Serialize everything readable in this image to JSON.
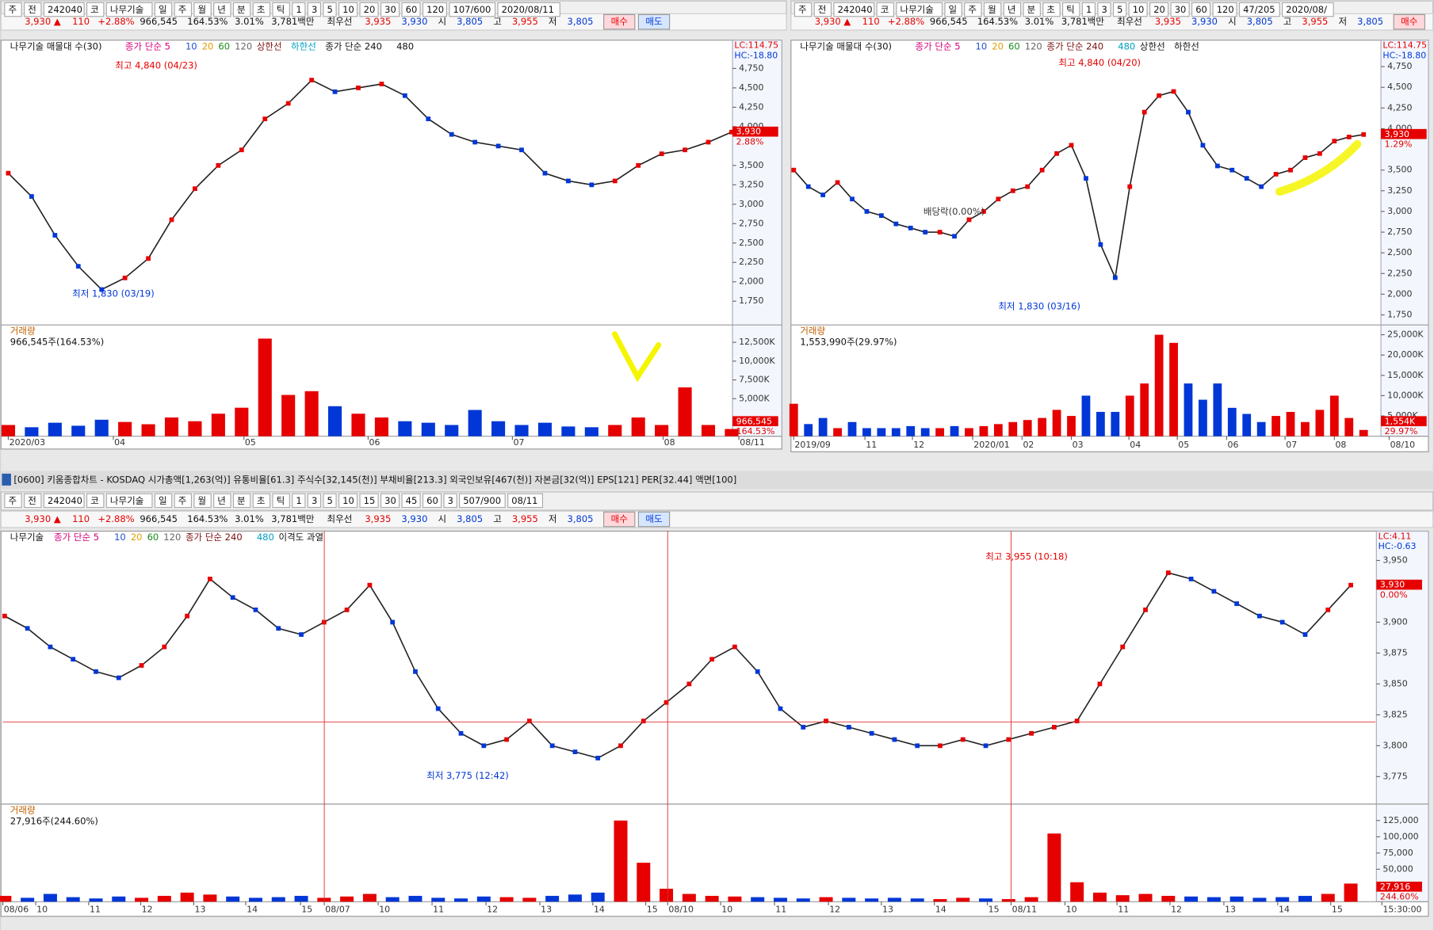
{
  "window_title": "[0600] 키움종합차트 - KOSDAQ 시가총액[1,263(억)] 유통비율[61.3] 주식수[32,145(천)] 부채비율[213.3] 외국인보유[467(천)] 자본금[32(억)] EPS[121] PER[32.44] 액면[100]",
  "panes": [
    {
      "toolbar": [
        "주",
        "전",
        "242040",
        "코",
        "나무기술",
        "일",
        "주",
        "월",
        "년",
        "분",
        "초",
        "틱",
        "1",
        "3",
        "5",
        "10",
        "20",
        "30",
        "60",
        "120",
        "107/600",
        "2020/08/11"
      ],
      "quote": [
        "3,930 ▲",
        "110",
        "+2.88%",
        "966,545",
        "164.53%",
        "3.01%",
        "3,781백만",
        "최우선",
        "3,935",
        "3,930",
        "시",
        "3,805",
        "고",
        "3,955",
        "저",
        "3,805"
      ],
      "buttons": [
        "매수",
        "매도"
      ],
      "legend": [
        "나무기술 매물대 수(30)",
        "종가 단순 5",
        "10",
        "20",
        "60",
        "120",
        "상한선",
        "하한선",
        "종가 단순 240",
        "480"
      ],
      "price": {
        "ylim": [
          1456,
          5115
        ],
        "yticks": [
          {
            "value": 4750,
            "label": "4,750"
          },
          {
            "value": 4500,
            "label": "4,500"
          },
          {
            "value": 4250,
            "label": "4,250"
          },
          {
            "value": 4000,
            "label": "4,000"
          },
          {
            "value": 3500,
            "label": "3,500"
          },
          {
            "value": 3250,
            "label": "3,250"
          },
          {
            "value": 3000,
            "label": "3,000"
          },
          {
            "value": 2750,
            "label": "2,750"
          },
          {
            "value": 2500,
            "label": "2,500"
          },
          {
            "value": 2250,
            "label": "2,250"
          },
          {
            "value": 2000,
            "label": "2,000"
          },
          {
            "value": 1750,
            "label": "1,750"
          }
        ],
        "labels": [
          "LC:114.75",
          "HC:-18.80"
        ],
        "current": {
          "value": 3930,
          "label": "3,930",
          "change": "2.88%"
        },
        "annotations": [
          "최고 4,840 (04/23)",
          "최저 1,830 (03/19)"
        ],
        "close": [
          3400,
          3100,
          2600,
          2200,
          1900,
          2050,
          2300,
          2800,
          3200,
          3500,
          3700,
          4100,
          4300,
          4600,
          4450,
          4500,
          4550,
          4400,
          4100,
          3900,
          3800,
          3750,
          3700,
          3400,
          3300,
          3250,
          3300,
          3500,
          3650,
          3700,
          3800,
          3930
        ]
      },
      "volume": {
        "title": "거래량",
        "summary": "966,545주(164.53%)",
        "ylim": [
          0,
          14700
        ],
        "yticks": [
          {
            "value": 12500,
            "label": "12,500K"
          },
          {
            "value": 10000,
            "label": "10,000K"
          },
          {
            "value": 7500,
            "label": "7,500K"
          },
          {
            "value": 5000,
            "label": "5,000K"
          }
        ],
        "current": "966,545",
        "ratio": "164.53%",
        "values": [
          1500,
          1200,
          1800,
          1400,
          2200,
          1900,
          1600,
          2500,
          2000,
          3000,
          3800,
          13000,
          5500,
          6000,
          4000,
          3000,
          2500,
          2000,
          1800,
          1500,
          3500,
          2000,
          1500,
          1800,
          1300,
          1200,
          1500,
          2500,
          1500,
          6500,
          1500,
          966.545
        ]
      },
      "dates": [
        "2020/03",
        "04",
        "05",
        "06",
        "07",
        "08",
        "08/11"
      ]
    },
    {
      "toolbar": [
        "주",
        "전",
        "242040",
        "코",
        "나무기술",
        "일",
        "주",
        "월",
        "년",
        "분",
        "초",
        "틱",
        "1",
        "3",
        "5",
        "10",
        "20",
        "30",
        "60",
        "120",
        "47/205",
        "2020/08/"
      ],
      "quote": [
        "3,930 ▲",
        "110",
        "+2.88%",
        "966,545",
        "164.53%",
        "3.01%",
        "3,781백만",
        "최우선",
        "3,935",
        "3,930",
        "시",
        "3,805",
        "고",
        "3,955",
        "저",
        "3,805"
      ],
      "buttons": [
        "매수"
      ],
      "legend": [
        "나무기술 매물대 수(30)",
        "종가 단순 5",
        "10",
        "20",
        "60",
        "120",
        "종가 단순 240",
        "480",
        "상한선",
        "하한선"
      ],
      "price": {
        "ylim": [
          1640,
          5070
        ],
        "yticks": [
          {
            "value": 4750,
            "label": "4,750"
          },
          {
            "value": 4500,
            "label": "4,500"
          },
          {
            "value": 4250,
            "label": "4,250"
          },
          {
            "value": 4000,
            "label": "4,000"
          },
          {
            "value": 3500,
            "label": "3,500"
          },
          {
            "value": 3250,
            "label": "3,250"
          },
          {
            "value": 3000,
            "label": "3,000"
          },
          {
            "value": 2750,
            "label": "2,750"
          },
          {
            "value": 2500,
            "label": "2,500"
          },
          {
            "value": 2250,
            "label": "2,250"
          },
          {
            "value": 2000,
            "label": "2,000"
          },
          {
            "value": 1750,
            "label": "1,750"
          }
        ],
        "labels": [
          "LC:114.75",
          "HC:-18.80"
        ],
        "current": {
          "value": 3930,
          "label": "3,930",
          "change": "1.29%"
        },
        "annotations": [
          "최고 4,840 (04/20)",
          "최저 1,830 (03/16)",
          "배당락(0.00%)"
        ],
        "close": [
          3500,
          3300,
          3200,
          3350,
          3150,
          3000,
          2950,
          2850,
          2800,
          2750,
          2750,
          2700,
          2900,
          3000,
          3150,
          3250,
          3300,
          3500,
          3700,
          3800,
          3400,
          2600,
          2200,
          3300,
          4200,
          4400,
          4450,
          4200,
          3800,
          3550,
          3500,
          3400,
          3300,
          3450,
          3500,
          3650,
          3700,
          3850,
          3900,
          3930
        ]
      },
      "volume": {
        "title": "거래량",
        "summary": "1,553,990주(29.97%)",
        "ylim": [
          0,
          27200
        ],
        "yticks": [
          {
            "value": 25000,
            "label": "25,000K"
          },
          {
            "value": 20000,
            "label": "20,000K"
          },
          {
            "value": 15000,
            "label": "15,000K"
          },
          {
            "value": 10000,
            "label": "10,000K"
          },
          {
            "value": 5000,
            "label": "5,000K"
          }
        ],
        "current": "1,554K",
        "ratio": "29.97%",
        "values": [
          8000,
          3000,
          4500,
          2000,
          3500,
          2000,
          2000,
          2000,
          2500,
          2000,
          2000,
          2500,
          2000,
          2500,
          3000,
          3500,
          4000,
          4500,
          6500,
          5000,
          10000,
          6000,
          6000,
          10000,
          13000,
          25000,
          23000,
          13000,
          9000,
          13000,
          7000,
          5500,
          3500,
          5000,
          6000,
          3500,
          6500,
          10000,
          4500,
          1554
        ]
      },
      "dates": [
        "2019/09",
        "11",
        "12",
        "2020/01",
        "02",
        "03",
        "04",
        "05",
        "06",
        "07",
        "08",
        "08/10"
      ]
    },
    {
      "toolbar": [
        "주",
        "전",
        "242040",
        "코",
        "나무기술",
        "일",
        "주",
        "월",
        "년",
        "분",
        "초",
        "틱",
        "1",
        "3",
        "5",
        "10",
        "15",
        "30",
        "45",
        "60",
        "3",
        "507/900",
        "08/11"
      ],
      "quote": [
        "3,930 ▲",
        "110",
        "+2.88%",
        "966,545",
        "164.53%",
        "3.01%",
        "3,781백만",
        "최우선",
        "3,935",
        "3,930",
        "시",
        "3,805",
        "고",
        "3,955",
        "저",
        "3,805"
      ],
      "buttons": [
        "매수",
        "매도"
      ],
      "legend": [
        "나무기술",
        "종가 단순 5",
        "10",
        "20",
        "60",
        "120",
        "종가 단순 240",
        "480",
        "이격도 과열"
      ],
      "price": {
        "ylim": [
          3753.5,
          3973.7
        ],
        "yticks": [
          {
            "value": 3950,
            "label": "3,950"
          },
          {
            "value": 3900,
            "label": "3,900"
          },
          {
            "value": 3875,
            "label": "3,875"
          },
          {
            "value": 3850,
            "label": "3,850"
          },
          {
            "value": 3825,
            "label": "3,825"
          },
          {
            "value": 3800,
            "label": "3,800"
          },
          {
            "value": 3775,
            "label": "3,775"
          }
        ],
        "labels": [
          "LC:4.11",
          "HC:-0.63"
        ],
        "current": {
          "value": 3930,
          "label": "3,930",
          "change": "0.00%"
        },
        "annotations": [
          "최고 3,955 (10:18)",
          "최저 3,775 (12:42)"
        ],
        "close": [
          3905,
          3895,
          3880,
          3870,
          3860,
          3855,
          3865,
          3880,
          3905,
          3935,
          3920,
          3910,
          3895,
          3890,
          3900,
          3910,
          3930,
          3900,
          3860,
          3830,
          3810,
          3800,
          3805,
          3820,
          3800,
          3795,
          3790,
          3800,
          3820,
          3835,
          3850,
          3870,
          3880,
          3860,
          3830,
          3815,
          3820,
          3815,
          3810,
          3805,
          3800,
          3800,
          3805,
          3800,
          3805,
          3810,
          3815,
          3820,
          3850,
          3880,
          3910,
          3940,
          3935,
          3925,
          3915,
          3905,
          3900,
          3890,
          3910,
          3930
        ]
      },
      "volume": {
        "title": "거래량",
        "summary": "27,916주(244.60%)",
        "ylim": [
          0,
          149000
        ],
        "yticks": [
          {
            "value": 125000,
            "label": "125,000"
          },
          {
            "value": 100000,
            "label": "100,000"
          },
          {
            "value": 75000,
            "label": "75,000"
          },
          {
            "value": 50000,
            "label": "50,000"
          }
        ],
        "current": "27,916",
        "ratio": "244.60%",
        "values": [
          9000,
          6000,
          12000,
          7000,
          5000,
          8000,
          6000,
          9000,
          14000,
          11000,
          8000,
          6000,
          7000,
          9000,
          6000,
          8000,
          12000,
          7000,
          9000,
          6000,
          5000,
          8000,
          7000,
          6000,
          9000,
          11000,
          14000,
          125000,
          60000,
          20000,
          12000,
          9000,
          8000,
          7000,
          6000,
          5000,
          7000,
          6000,
          5000,
          6000,
          5000,
          4000,
          6000,
          5000,
          4000,
          7000,
          105000,
          30000,
          14000,
          10000,
          12000,
          9000,
          8000,
          7000,
          8000,
          6000,
          7000,
          9000,
          12000,
          27916
        ]
      },
      "dates": [
        "08/06",
        "10",
        "11",
        "12",
        "13",
        "14",
        "15",
        "08/07",
        "10",
        "11",
        "12",
        "13",
        "14",
        "15",
        "08/10",
        "10",
        "11",
        "12",
        "13",
        "14",
        "15",
        "08/11",
        "10",
        "11",
        "12",
        "13",
        "14",
        "15",
        "15:30:00"
      ]
    }
  ]
}
